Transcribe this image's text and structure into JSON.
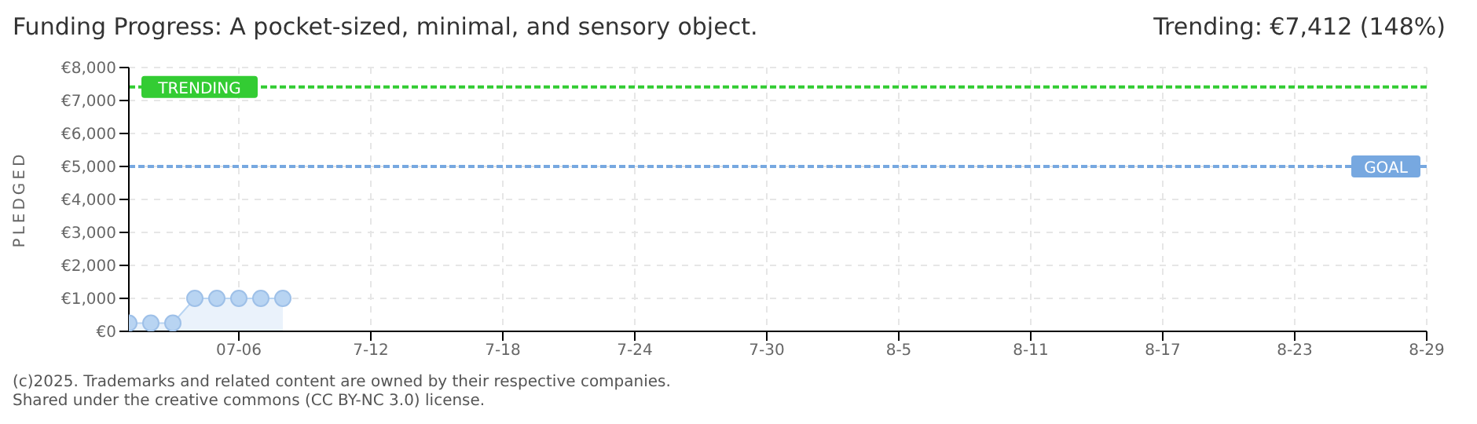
{
  "chart_data": {
    "type": "area",
    "title": "Funding Progress: A pocket-sized, minimal, and sensory object.",
    "subtitle": "Trending:  €7,412 (148%)",
    "ylabel": "PLEDGED",
    "x": [
      "2025-07-01",
      "2025-07-02",
      "2025-07-03",
      "2025-07-04",
      "2025-07-05",
      "2025-07-06",
      "2025-07-07",
      "2025-07-08"
    ],
    "series": [
      {
        "color": "#b8d4f2",
        "values": [
          250,
          250,
          250,
          1000,
          1000,
          1000,
          1000,
          1000
        ]
      }
    ],
    "xlim": [
      "2025-07-01",
      "2025-08-29"
    ],
    "xticks": [
      {
        "value": "2025-07-06",
        "label": "07-06"
      },
      {
        "value": "2025-07-12",
        "label": "7-12"
      },
      {
        "value": "2025-07-18",
        "label": "7-18"
      },
      {
        "value": "2025-07-24",
        "label": "7-24"
      },
      {
        "value": "2025-07-30",
        "label": "7-30"
      },
      {
        "value": "2025-08-05",
        "label": "8-5"
      },
      {
        "value": "2025-08-11",
        "label": "8-11"
      },
      {
        "value": "2025-08-17",
        "label": "8-17"
      },
      {
        "value": "2025-08-23",
        "label": "8-23"
      },
      {
        "value": "2025-08-29",
        "label": "8-29"
      }
    ],
    "ylim": [
      0,
      8000
    ],
    "yticks": [
      {
        "value": 0,
        "label": "€0"
      },
      {
        "value": 1000,
        "label": "€1,000"
      },
      {
        "value": 2000,
        "label": "€2,000"
      },
      {
        "value": 3000,
        "label": "€3,000"
      },
      {
        "value": 4000,
        "label": "€4,000"
      },
      {
        "value": 5000,
        "label": "€5,000"
      },
      {
        "value": 6000,
        "label": "€6,000"
      },
      {
        "value": 7000,
        "label": "€7,000"
      },
      {
        "value": 8000,
        "label": "€8,000"
      }
    ],
    "ref_lines": [
      {
        "axis": "y",
        "value": 7412,
        "label": "TRENDING",
        "color": "#33cc33",
        "line_style": "dashed"
      },
      {
        "axis": "y",
        "value": 5000,
        "label": "GOAL",
        "color": "#77a8e0",
        "line_style": "dashed"
      }
    ],
    "grid": true,
    "marker": "circle",
    "legend": false,
    "annotations": [
      "(c)2025. Trademarks and related content are owned by their respective companies.",
      "Shared under the creative commons (CC BY-NC 3.0) license."
    ]
  }
}
